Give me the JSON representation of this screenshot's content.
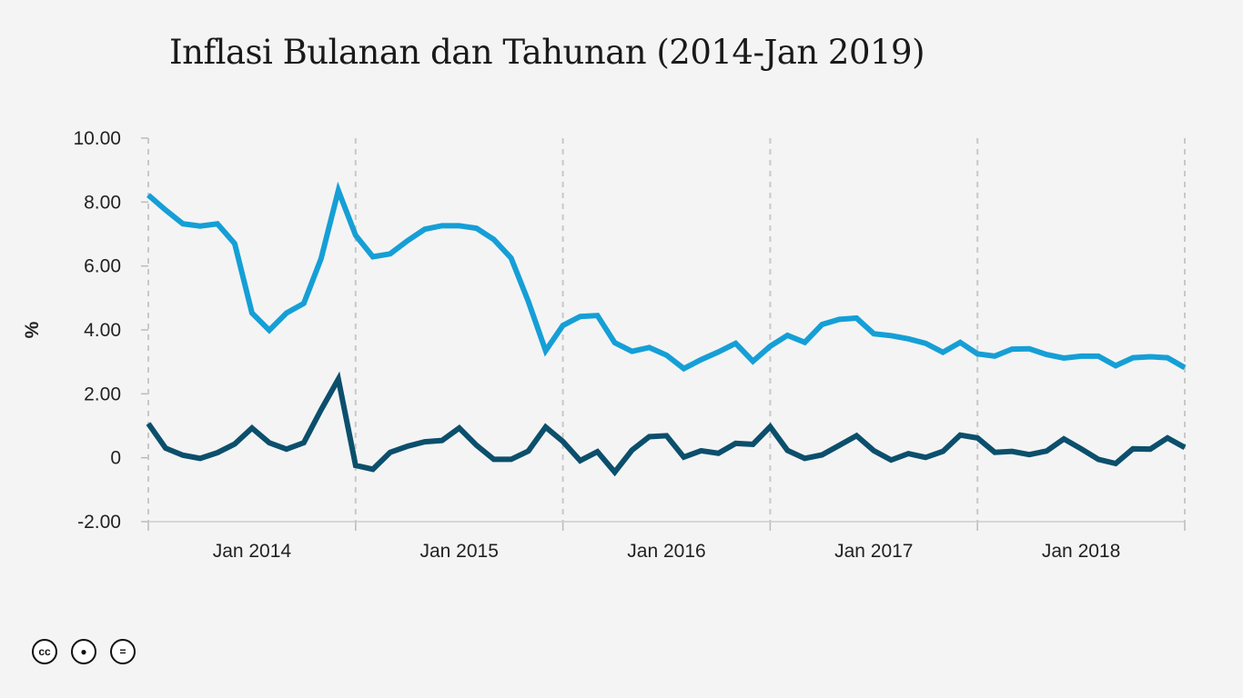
{
  "chart_data": {
    "type": "line",
    "title": "Inflasi Bulanan dan Tahunan (2014-Jan 2019)",
    "ylabel": "%",
    "xlabel": "",
    "ylim": [
      -2,
      10
    ],
    "yticks": [
      10,
      8,
      6,
      4,
      2,
      0,
      -2
    ],
    "ytick_labels": [
      "10.00",
      "8.00",
      "6.00",
      "4.00",
      "2.00",
      "0",
      "-2.00"
    ],
    "xtick_labels": [
      "Jan 2014",
      "Jan 2015",
      "Jan 2016",
      "Jan 2017",
      "Jan 2018"
    ],
    "x_start": "Jan 2014",
    "x_end": "Jan 2019",
    "grid": "vertical dashed at each January",
    "legend": "none",
    "series": [
      {
        "color": "#159fd6",
        "values": [
          8.22,
          7.75,
          7.32,
          7.25,
          7.32,
          6.7,
          4.53,
          3.99,
          4.53,
          4.83,
          6.23,
          8.36,
          6.96,
          6.29,
          6.38,
          6.79,
          7.15,
          7.26,
          7.26,
          7.18,
          6.83,
          6.25,
          4.89,
          3.35,
          4.14,
          4.42,
          4.45,
          3.6,
          3.33,
          3.45,
          3.21,
          2.79,
          3.07,
          3.31,
          3.58,
          3.02,
          3.49,
          3.83,
          3.61,
          4.17,
          4.33,
          4.37,
          3.88,
          3.82,
          3.72,
          3.58,
          3.3,
          3.61,
          3.25,
          3.18,
          3.4,
          3.41,
          3.23,
          3.12,
          3.18,
          3.18,
          2.88,
          3.13,
          3.16,
          3.13,
          2.82
        ]
      },
      {
        "color": "#0b4f6c",
        "values": [
          1.07,
          0.3,
          0.08,
          -0.02,
          0.16,
          0.43,
          0.93,
          0.47,
          0.27,
          0.47,
          1.5,
          2.46,
          -0.24,
          -0.36,
          0.17,
          0.36,
          0.5,
          0.54,
          0.93,
          0.39,
          -0.05,
          -0.05,
          0.21,
          0.96,
          0.51,
          -0.09,
          0.19,
          -0.45,
          0.24,
          0.66,
          0.69,
          0.02,
          0.22,
          0.14,
          0.45,
          0.42,
          0.97,
          0.23,
          -0.02,
          0.09,
          0.39,
          0.69,
          0.22,
          -0.07,
          0.13,
          0.01,
          0.2,
          0.71,
          0.62,
          0.17,
          0.2,
          0.1,
          0.21,
          0.59,
          0.28,
          -0.05,
          -0.18,
          0.28,
          0.27,
          0.62,
          0.32
        ]
      }
    ]
  },
  "footer": {
    "license_icons": [
      "cc-icon",
      "by-icon",
      "nd-icon"
    ]
  }
}
